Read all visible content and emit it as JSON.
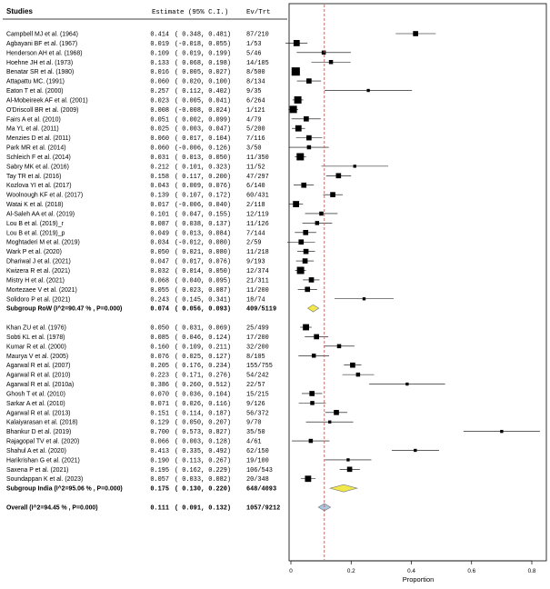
{
  "chart_data": {
    "type": "forest",
    "header": {
      "studies": "Studies",
      "estimate": "Estimate (95% C.I.)",
      "evtrt": "Ev/Trt"
    },
    "xlabel": "Proportion",
    "xlim": [
      0,
      0.8
    ],
    "xticks": [
      "0",
      "0.2",
      "0.4",
      "0.6",
      "0.8"
    ],
    "xtick_values": [
      0,
      0.2,
      0.4,
      0.6,
      0.8
    ],
    "reference_line": 0.111,
    "colors": {
      "reference": "#d9534f",
      "diamond_subgroup": "#f2e84a",
      "diamond_overall": "#a9c7e2",
      "marker": "#000000"
    },
    "rows": [
      {
        "kind": "study",
        "study": "Campbell MJ et al. (1964)",
        "est": "0.414",
        "lo": "0.348",
        "hi": "0.481",
        "evtrt": "87/210",
        "w": 3
      },
      {
        "kind": "study",
        "study": "Agbayani BF et al. (1967)",
        "est": "0.019",
        "lo": "-0.018",
        "hi": "0.055",
        "evtrt": "1/53",
        "w": 4
      },
      {
        "kind": "study",
        "study": "Henderson AH et al. (1968)",
        "est": "0.109",
        "lo": "0.019",
        "hi": "0.199",
        "evtrt": "5/46",
        "w": 2
      },
      {
        "kind": "study",
        "study": "Hoehne JH et al. (1973)",
        "est": "0.133",
        "lo": "0.068",
        "hi": "0.198",
        "evtrt": "14/105",
        "w": 2
      },
      {
        "kind": "study",
        "study": "Benatar SR et al. (1980)",
        "est": "0.016",
        "lo": "0.005",
        "hi": "0.027",
        "evtrt": "8/500",
        "w": 6
      },
      {
        "kind": "study",
        "study": "Attapattu MC. (1991)",
        "est": "0.060",
        "lo": "0.020",
        "hi": "0.100",
        "evtrt": "8/134",
        "w": 3
      },
      {
        "kind": "study",
        "study": "Eaton T et al. (2000)",
        "est": "0.257",
        "lo": "0.112",
        "hi": "0.402",
        "evtrt": "9/35",
        "w": 1
      },
      {
        "kind": "study",
        "study": "Al-Mobeireek AF et al. (2001)",
        "est": "0.023",
        "lo": "0.005",
        "hi": "0.041",
        "evtrt": "6/264",
        "w": 5
      },
      {
        "kind": "study",
        "study": "O'Driscoll BR et al. (2009)",
        "est": "0.008",
        "lo": "-0.008",
        "hi": "0.024",
        "evtrt": "1/121",
        "w": 5
      },
      {
        "kind": "study",
        "study": "Fairs A et al. (2010)",
        "est": "0.051",
        "lo": "0.002",
        "hi": "0.099",
        "evtrt": "4/79",
        "w": 3
      },
      {
        "kind": "study",
        "study": "Ma YL et al. (2011)",
        "est": "0.025",
        "lo": "0.003",
        "hi": "0.047",
        "evtrt": "5/200",
        "w": 4
      },
      {
        "kind": "study",
        "study": "Menzies D et al. (2011)",
        "est": "0.060",
        "lo": "0.017",
        "hi": "0.104",
        "evtrt": "7/116",
        "w": 3
      },
      {
        "kind": "study",
        "study": "Park MR et al. (2014)",
        "est": "0.060",
        "lo": "-0.006",
        "hi": "0.126",
        "evtrt": "3/50",
        "w": 2
      },
      {
        "kind": "study",
        "study": "Schleich F et al. (2014)",
        "est": "0.031",
        "lo": "0.013",
        "hi": "0.050",
        "evtrt": "11/350",
        "w": 5
      },
      {
        "kind": "study",
        "study": "Sabry MK et al. (2016)",
        "est": "0.212",
        "lo": "0.101",
        "hi": "0.323",
        "evtrt": "11/52",
        "w": 1
      },
      {
        "kind": "study",
        "study": "Tay TR et al. (2016)",
        "est": "0.158",
        "lo": "0.117",
        "hi": "0.200",
        "evtrt": "47/297",
        "w": 3
      },
      {
        "kind": "study",
        "study": "Kozlova YI et al. (2017)",
        "est": "0.043",
        "lo": "0.009",
        "hi": "0.076",
        "evtrt": "6/140",
        "w": 3
      },
      {
        "kind": "study",
        "study": "Woolnough KF et al. (2017)",
        "est": "0.139",
        "lo": "0.107",
        "hi": "0.172",
        "evtrt": "60/431",
        "w": 3
      },
      {
        "kind": "study",
        "study": "Watai K et al. (2018)",
        "est": "0.017",
        "lo": "-0.006",
        "hi": "0.040",
        "evtrt": "2/118",
        "w": 4
      },
      {
        "kind": "study",
        "study": "Al-Saleh AA et al. (2019)",
        "est": "0.101",
        "lo": "0.047",
        "hi": "0.155",
        "evtrt": "12/119",
        "w": 2
      },
      {
        "kind": "study",
        "study": "Lou B et al. (2019)_r",
        "est": "0.087",
        "lo": "0.038",
        "hi": "0.137",
        "evtrt": "11/126",
        "w": 2
      },
      {
        "kind": "study",
        "study": "Lou B et al. (2019)_p",
        "est": "0.049",
        "lo": "0.013",
        "hi": "0.084",
        "evtrt": "7/144",
        "w": 3
      },
      {
        "kind": "study",
        "study": "Moghtaderi M et al. (2019)",
        "est": "0.034",
        "lo": "-0.012",
        "hi": "0.080",
        "evtrt": "2/59",
        "w": 3
      },
      {
        "kind": "study",
        "study": "Wark P et al. (2020)",
        "est": "0.050",
        "lo": "0.021",
        "hi": "0.080",
        "evtrt": "11/218",
        "w": 3
      },
      {
        "kind": "study",
        "study": "Dhariwal J et al. (2021)",
        "est": "0.047",
        "lo": "0.017",
        "hi": "0.076",
        "evtrt": "9/193",
        "w": 3
      },
      {
        "kind": "study",
        "study": "Kwizera R et al. (2021)",
        "est": "0.032",
        "lo": "0.014",
        "hi": "0.050",
        "evtrt": "12/374",
        "w": 5
      },
      {
        "kind": "study",
        "study": "Mistry H et al. (2021)",
        "est": "0.068",
        "lo": "0.040",
        "hi": "0.095",
        "evtrt": "21/311",
        "w": 3
      },
      {
        "kind": "study",
        "study": "Mortezaee V et al. (2021)",
        "est": "0.055",
        "lo": "0.023",
        "hi": "0.087",
        "evtrt": "11/200",
        "w": 3
      },
      {
        "kind": "study",
        "study": "Solidoro P et al. (2021)",
        "est": "0.243",
        "lo": "0.145",
        "hi": "0.341",
        "evtrt": "18/74",
        "w": 1
      },
      {
        "kind": "subgroup",
        "study": "Subgroup RoW (I^2=90.47 % , P=0.000)",
        "est": "0.074",
        "lo": "0.056",
        "hi": "0.093",
        "evtrt": "409/5119"
      },
      {
        "kind": "blank"
      },
      {
        "kind": "study",
        "study": "Khan ZU et al. (1976)",
        "est": "0.050",
        "lo": "0.031",
        "hi": "0.069",
        "evtrt": "25/499",
        "w": 4
      },
      {
        "kind": "study",
        "study": "Sobti KL et al. (1978)",
        "est": "0.085",
        "lo": "0.046",
        "hi": "0.124",
        "evtrt": "17/200",
        "w": 3
      },
      {
        "kind": "study",
        "study": "Kumar R et al. (2000)",
        "est": "0.160",
        "lo": "0.109",
        "hi": "0.211",
        "evtrt": "32/200",
        "w": 2
      },
      {
        "kind": "study",
        "study": "Maurya V et al. (2005)",
        "est": "0.076",
        "lo": "0.025",
        "hi": "0.127",
        "evtrt": "8/105",
        "w": 2
      },
      {
        "kind": "study",
        "study": "Agarwal R et al. (2007)",
        "est": "0.205",
        "lo": "0.176",
        "hi": "0.234",
        "evtrt": "155/755",
        "w": 3
      },
      {
        "kind": "study",
        "study": "Agarwal R et al. (2010)",
        "est": "0.223",
        "lo": "0.171",
        "hi": "0.276",
        "evtrt": "54/242",
        "w": 2
      },
      {
        "kind": "study",
        "study": "Agarwal R et al. (2010a)",
        "est": "0.386",
        "lo": "0.260",
        "hi": "0.512",
        "evtrt": "22/57",
        "w": 1
      },
      {
        "kind": "study",
        "study": "Ghosh T et al. (2010)",
        "est": "0.070",
        "lo": "0.036",
        "hi": "0.104",
        "evtrt": "15/215",
        "w": 3
      },
      {
        "kind": "study",
        "study": "Sarkar A et al. (2010)",
        "est": "0.071",
        "lo": "0.026",
        "hi": "0.116",
        "evtrt": "9/126",
        "w": 2
      },
      {
        "kind": "study",
        "study": "Agarwal R et al. (2013)",
        "est": "0.151",
        "lo": "0.114",
        "hi": "0.187",
        "evtrt": "56/372",
        "w": 3
      },
      {
        "kind": "study",
        "study": "Kalaiyarasan et al. (2018)",
        "est": "0.129",
        "lo": "0.050",
        "hi": "0.207",
        "evtrt": "9/70",
        "w": 1
      },
      {
        "kind": "study",
        "study": "Bhankur D et al. (2019)",
        "est": "0.700",
        "lo": "0.573",
        "hi": "0.827",
        "evtrt": "35/50",
        "w": 1
      },
      {
        "kind": "study",
        "study": "Rajagopal TV et al. (2020)",
        "est": "0.066",
        "lo": "0.003",
        "hi": "0.128",
        "evtrt": "4/61",
        "w": 2
      },
      {
        "kind": "study",
        "study": "Shahul A et al. (2020)",
        "est": "0.413",
        "lo": "0.335",
        "hi": "0.492",
        "evtrt": "62/150",
        "w": 1
      },
      {
        "kind": "study",
        "study": "Harikrishan G et al. (2021)",
        "est": "0.190",
        "lo": "0.113",
        "hi": "0.267",
        "evtrt": "19/100",
        "w": 1
      },
      {
        "kind": "study",
        "study": "Saxena P et al. (2021)",
        "est": "0.195",
        "lo": "0.162",
        "hi": "0.229",
        "evtrt": "106/543",
        "w": 3
      },
      {
        "kind": "study",
        "study": "Soundappan K et al. (2023)",
        "est": "0.057",
        "lo": "0.033",
        "hi": "0.082",
        "evtrt": "20/348",
        "w": 4
      },
      {
        "kind": "subgroup",
        "study": "Subgroup India (I^2=95.06 % , P=0.000)",
        "est": "0.175",
        "lo": "0.130",
        "hi": "0.220",
        "evtrt": "648/4093"
      },
      {
        "kind": "blank"
      },
      {
        "kind": "overall",
        "study": "Overall (I^2=94.45 % , P=0.000)",
        "est": "0.111",
        "lo": "0.091",
        "hi": "0.132",
        "evtrt": "1057/9212"
      }
    ]
  }
}
